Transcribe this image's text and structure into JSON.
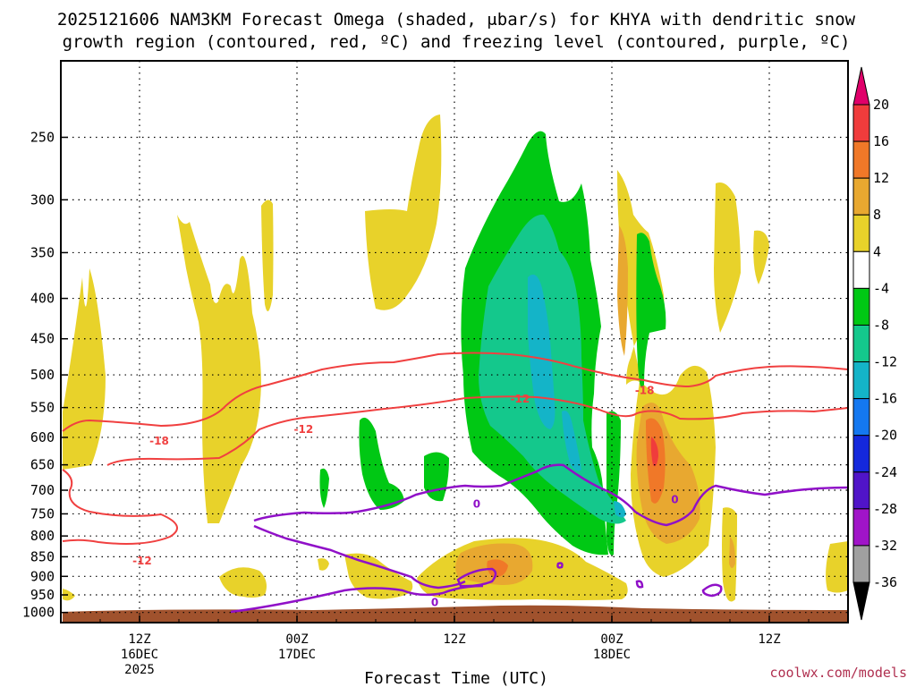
{
  "chart_data": {
    "type": "contour",
    "title_line1": "2025121606 NAM3KM Forecast Omega (shaded, μbar/s) for KHYA with dendritic snow",
    "title_line2": "growth region (contoured, red, ºC) and freezing level (contoured, purple, ºC)",
    "xlabel": "Forecast Time (UTC)",
    "credit": "coolwx.com/models",
    "x_ticks": [
      {
        "label": "12Z",
        "sub1": "16DEC",
        "sub2": "2025",
        "hour": 6
      },
      {
        "label": "00Z",
        "sub1": "17DEC",
        "sub2": "",
        "hour": 18
      },
      {
        "label": "12Z",
        "sub1": "",
        "sub2": "",
        "hour": 30
      },
      {
        "label": "00Z",
        "sub1": "18DEC",
        "sub2": "",
        "hour": 42
      },
      {
        "label": "12Z",
        "sub1": "",
        "sub2": "",
        "hour": 54
      }
    ],
    "x_range_hours": [
      0,
      60
    ],
    "y_ticks": [
      {
        "label": "250",
        "value": 250
      },
      {
        "label": "300",
        "value": 300
      },
      {
        "label": "350",
        "value": 350
      },
      {
        "label": "400",
        "value": 400
      },
      {
        "label": "450",
        "value": 450
      },
      {
        "label": "500",
        "value": 500
      },
      {
        "label": "550",
        "value": 550
      },
      {
        "label": "600",
        "value": 600
      },
      {
        "label": "650",
        "value": 650
      },
      {
        "label": "700",
        "value": 700
      },
      {
        "label": "750",
        "value": 750
      },
      {
        "label": "800",
        "value": 800
      },
      {
        "label": "850",
        "value": 850
      },
      {
        "label": "900",
        "value": 900
      },
      {
        "label": "950",
        "value": 950
      },
      {
        "label": "1000",
        "value": 1000
      }
    ],
    "y_range_hpa": [
      200,
      1030
    ],
    "colorbar": {
      "labels": [
        "20",
        "16",
        "12",
        "8",
        "4",
        "-4",
        "-8",
        "-12",
        "-16",
        "-20",
        "-24",
        "-28",
        "-32",
        "-36"
      ],
      "colors": [
        "#e0006a",
        "#f03c3c",
        "#f07828",
        "#e8a830",
        "#e8d22a",
        "#ffffff",
        "#00c814",
        "#14c88c",
        "#14b4c8",
        "#1478f0",
        "#1428dc",
        "#5014c8",
        "#a014c8",
        "#a0a0a0",
        "#000000"
      ]
    },
    "colors": {
      "yellow": "#e8d22a",
      "orange_light": "#e8a830",
      "orange": "#f07828",
      "red_fill": "#f03c3c",
      "green": "#00c814",
      "teal": "#14c88c",
      "cyan": "#14b4c8",
      "ground": "#a0522d",
      "dgz_line": "#f04040",
      "freeze_line": "#9010c8"
    },
    "contour_labels": [
      {
        "text": "-18",
        "hour": 7.5,
        "p": 605,
        "color": "dgz"
      },
      {
        "text": "-12",
        "hour": 18.5,
        "p": 585,
        "color": "dgz"
      },
      {
        "text": "-12",
        "hour": 6.2,
        "p": 858,
        "color": "dgz"
      },
      {
        "text": "-12",
        "hour": 35,
        "p": 535,
        "color": "dgz"
      },
      {
        "text": "-18",
        "hour": 44.5,
        "p": 522,
        "color": "dgz"
      },
      {
        "text": "0",
        "hour": 31.7,
        "p": 727,
        "color": "freeze"
      },
      {
        "text": "0",
        "hour": 46.8,
        "p": 718,
        "color": "freeze"
      },
      {
        "text": "0",
        "hour": 28.5,
        "p": 969,
        "color": "freeze"
      }
    ]
  }
}
